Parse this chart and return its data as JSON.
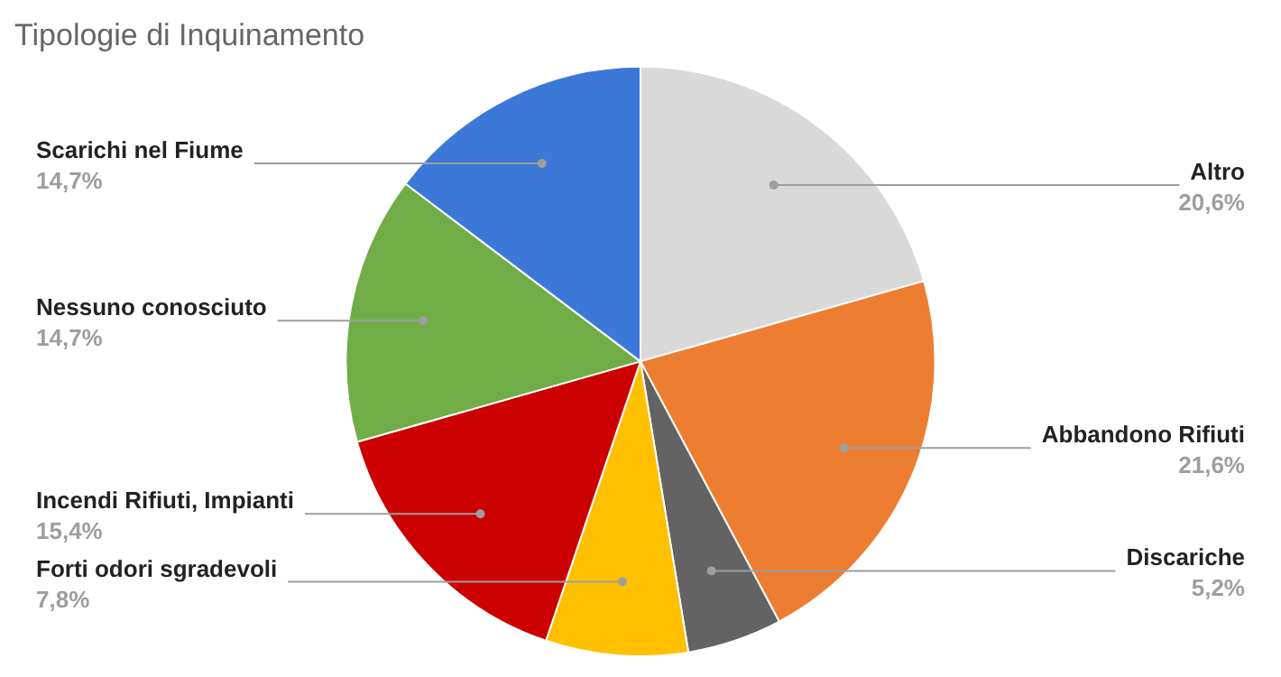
{
  "chart_data": {
    "type": "pie",
    "title": "Tipologie di Inquinamento",
    "categories": [
      "Altro",
      "Abbandono Rifiuti",
      "Discariche",
      "Forti odori sgradevoli",
      "Incendi Rifiuti, Impianti",
      "Nessuno conosciuto",
      "Scarichi nel Fiume"
    ],
    "values": [
      20.6,
      21.6,
      5.2,
      7.8,
      15.4,
      14.7,
      14.7
    ],
    "colors": [
      "#d9d9d9",
      "#ed7d31",
      "#636363",
      "#ffc000",
      "#cc0000",
      "#70ad47",
      "#3c78d8"
    ],
    "value_labels": [
      "20,6%",
      "21,6%",
      "5,2%",
      "7,8%",
      "15,4%",
      "14,7%",
      "14,7%"
    ],
    "legend": false
  }
}
